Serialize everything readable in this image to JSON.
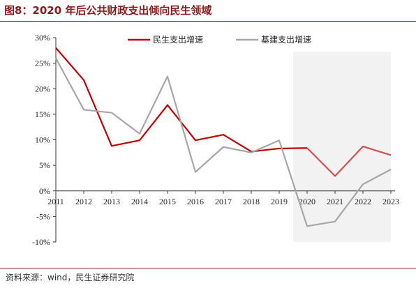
{
  "header": {
    "title": "图8：2020 年后公共财政支出倾向民生领域"
  },
  "footer": {
    "source": "资料来源：wind，民生证券研究院"
  },
  "chart_data": {
    "type": "line",
    "categories": [
      "2011",
      "2012",
      "2013",
      "2014",
      "2015",
      "2016",
      "2017",
      "2018",
      "2019",
      "2020",
      "2021",
      "2022",
      "2023"
    ],
    "series": [
      {
        "name": "民生支出增速",
        "color": "#c00000",
        "values": [
          28.0,
          21.7,
          8.8,
          9.9,
          16.8,
          9.9,
          11.0,
          7.7,
          8.3,
          8.4,
          2.9,
          8.7,
          7.0
        ]
      },
      {
        "name": "基建支出增速",
        "color": "#a6a6a6",
        "values": [
          26.0,
          15.9,
          15.3,
          11.2,
          22.4,
          3.7,
          8.6,
          7.5,
          9.9,
          -6.9,
          -6.0,
          1.3,
          4.2
        ]
      }
    ],
    "ylim": [
      -10,
      30
    ],
    "yticks": [
      -10,
      -5,
      0,
      5,
      10,
      15,
      20,
      25,
      30
    ],
    "ytick_suffix": "%",
    "shaded_range": [
      "2020",
      "2023"
    ],
    "shade_color": "#f2f2f2",
    "forecast_color": "#d05050",
    "legend_position": "top",
    "xlabel": "",
    "ylabel": ""
  }
}
